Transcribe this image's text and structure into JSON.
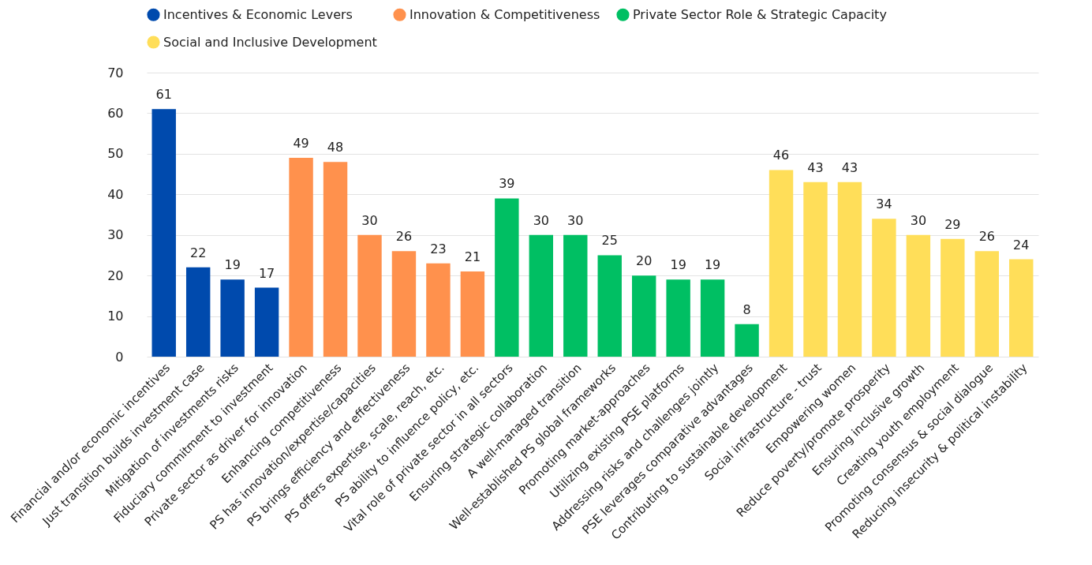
{
  "chart_data": {
    "type": "bar",
    "categories": [
      "Financial and/or economic incentives",
      "Just transition builds investment case",
      "Mitigation of investments risks",
      "Fiduciary commitment to investment",
      "Private sector as driver for innovation",
      "Enhancing competitiveness",
      "PS has innovation/expertise/capacities",
      "PS brings efficiency and effectiveness",
      "PS offers expertise, scale, reach, etc.",
      "PS ability to influence policy, etc.",
      "Vital role of private sector in all sectors",
      "Ensuring strategic collaboration",
      "A well-managed transition",
      "Well-established PS global frameworks",
      "Promoting market-approaches",
      "Utilizing existing PSE platforms",
      "Addressing risks and challenges jointly",
      "PSE leverages comparative advantages",
      "Contributing to sustainable development",
      "Social infrastructure - trust",
      "Empowering women",
      "Reduce poverty/promote prosperity",
      "Ensuring inclusive growth",
      "Creating youth employment",
      "Promoting consensus & social dialogue",
      "Reducing insecurity & political instability"
    ],
    "series": [
      {
        "name": "Incentives & Economic Levers",
        "color": "#004aad",
        "values": [
          61,
          22,
          19,
          17,
          null,
          null,
          null,
          null,
          null,
          null,
          null,
          null,
          null,
          null,
          null,
          null,
          null,
          null,
          null,
          null,
          null,
          null,
          null,
          null,
          null,
          null
        ]
      },
      {
        "name": "Innovation & Competitiveness",
        "color": "#ff914d",
        "values": [
          null,
          null,
          null,
          null,
          49,
          48,
          30,
          26,
          23,
          21,
          null,
          null,
          null,
          null,
          null,
          null,
          null,
          null,
          null,
          null,
          null,
          null,
          null,
          null,
          null,
          null
        ]
      },
      {
        "name": "Private Sector Role & Strategic Capacity",
        "color": "#00bf63",
        "values": [
          null,
          null,
          null,
          null,
          null,
          null,
          null,
          null,
          null,
          null,
          39,
          30,
          30,
          25,
          20,
          19,
          19,
          8,
          null,
          null,
          null,
          null,
          null,
          null,
          null,
          null
        ]
      },
      {
        "name": "Social and Inclusive Development",
        "color": "#ffde59",
        "values": [
          null,
          null,
          null,
          null,
          null,
          null,
          null,
          null,
          null,
          null,
          null,
          null,
          null,
          null,
          null,
          null,
          null,
          null,
          46,
          43,
          43,
          34,
          30,
          29,
          26,
          24
        ]
      }
    ],
    "ylim": [
      0,
      70
    ],
    "yticks": [
      0,
      10,
      20,
      30,
      40,
      50,
      60,
      70
    ],
    "grid": "y",
    "legend": "top",
    "data_labels": true
  }
}
